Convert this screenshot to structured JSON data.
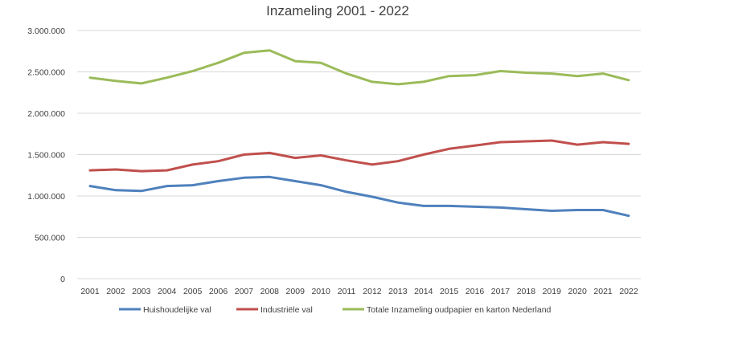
{
  "chart_data": {
    "type": "line",
    "title": "Inzameling 2001 - 2022",
    "xlabel": "",
    "ylabel": "",
    "categories": [
      "2001",
      "2002",
      "2003",
      "2004",
      "2005",
      "2006",
      "2007",
      "2008",
      "2009",
      "2010",
      "2011",
      "2012",
      "2013",
      "2014",
      "2015",
      "2016",
      "2017",
      "2018",
      "2019",
      "2020",
      "2021",
      "2022"
    ],
    "ylim": [
      0,
      3000000
    ],
    "yticks": [
      {
        "value": 0,
        "label": "0"
      },
      {
        "value": 500000,
        "label": "500.000"
      },
      {
        "value": 1000000,
        "label": "1.000.000"
      },
      {
        "value": 1500000,
        "label": "1.500.000"
      },
      {
        "value": 2000000,
        "label": "2.000.000"
      },
      {
        "value": 2500000,
        "label": "2.500.000"
      },
      {
        "value": 3000000,
        "label": "3.000.000"
      }
    ],
    "grid": true,
    "legend_position": "bottom",
    "series": [
      {
        "name": "Huishoudelijke val",
        "color": "#4f81bd",
        "values": [
          1120000,
          1070000,
          1060000,
          1120000,
          1130000,
          1180000,
          1220000,
          1230000,
          1180000,
          1130000,
          1050000,
          990000,
          920000,
          880000,
          880000,
          870000,
          860000,
          840000,
          820000,
          830000,
          830000,
          760000
        ]
      },
      {
        "name": "Industriële val",
        "color": "#c0504d",
        "values": [
          1310000,
          1320000,
          1300000,
          1310000,
          1380000,
          1420000,
          1500000,
          1520000,
          1460000,
          1490000,
          1430000,
          1380000,
          1420000,
          1500000,
          1570000,
          1610000,
          1650000,
          1660000,
          1670000,
          1620000,
          1650000,
          1630000
        ]
      },
      {
        "name": "Totale Inzameling oudpapier en karton Nederland",
        "color": "#9bbb59",
        "values": [
          2430000,
          2390000,
          2360000,
          2430000,
          2510000,
          2610000,
          2730000,
          2760000,
          2630000,
          2610000,
          2480000,
          2380000,
          2350000,
          2380000,
          2450000,
          2460000,
          2510000,
          2490000,
          2480000,
          2450000,
          2480000,
          2400000
        ]
      }
    ]
  }
}
